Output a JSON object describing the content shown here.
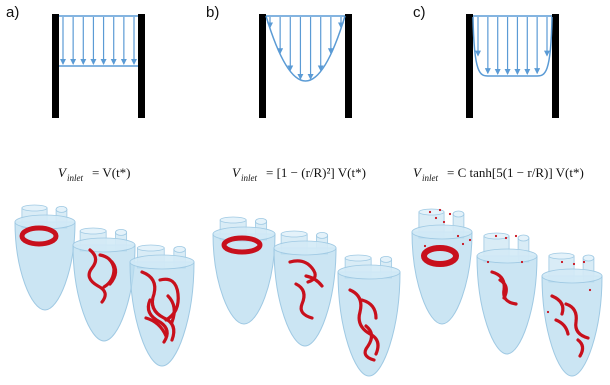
{
  "panels": [
    {
      "label": "a)",
      "profile": "uniform"
    },
    {
      "label": "b)",
      "profile": "parabolic"
    },
    {
      "label": "c)",
      "profile": "tanh"
    }
  ],
  "equations": {
    "a": {
      "lhs": "V",
      "lhs_sub": "inlet",
      "rhs": "= V(t*)"
    },
    "b": {
      "lhs": "V",
      "lhs_sub": "inlet",
      "rhs": "= [1 − (r/R)²] V(t*)"
    },
    "c": {
      "lhs": "V",
      "lhs_sub": "inlet",
      "rhs": "= C tanh[5(1 − r/R)] V(t*)"
    }
  },
  "colors": {
    "wall": "#000000",
    "arrow": "#5b9bd5",
    "ventricle_fill": "#b9dcef",
    "ventricle_edge": "#9fc9e3",
    "vortex": "#c8101c"
  }
}
